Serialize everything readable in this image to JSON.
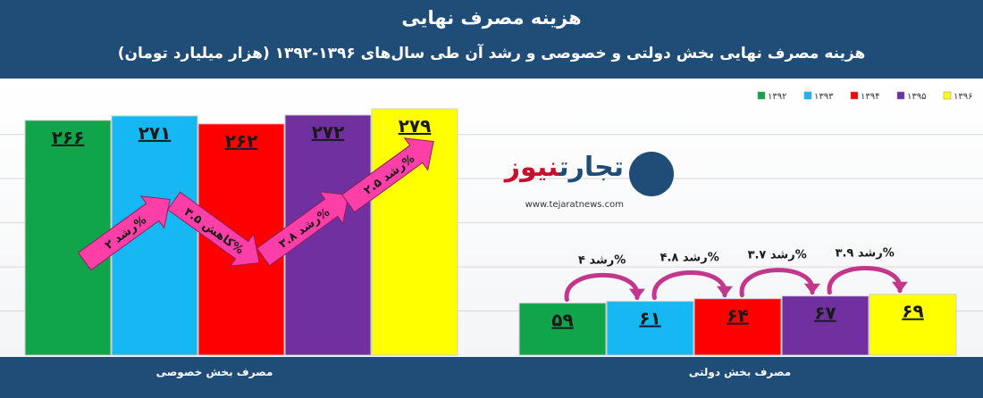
{
  "header": {
    "title": "هزینه مصرف نهایی",
    "subtitle": "هزینه مصرف نهایی بخش دولتی و خصوصی و رشد آن طی سال‌های ۱۳۹۶-۱۳۹۲ (هزار میلیارد تومان)"
  },
  "logo": {
    "brand_main": "تجارت",
    "brand_accent": "نیوز",
    "url": "www.tejaratnews.com"
  },
  "colors": {
    "1392": "#10a54a",
    "1393": "#15b8f2",
    "1394": "#ff0000",
    "1395": "#7030a0",
    "1396": "#ffff00",
    "growth_arrow": "#ff3fa8",
    "growth_curve": "#c2368c",
    "header_bg": "#1f4d78"
  },
  "chart_data": {
    "type": "bar",
    "legend": [
      "۱۳۹۲",
      "۱۳۹۳",
      "۱۳۹۴",
      "۱۳۹۵",
      "۱۳۹۶"
    ],
    "legend_position": "top-right",
    "grid": true,
    "categories": [
      "مصرف بخش خصوصی",
      "مصرف بخش دولتی"
    ],
    "series": [
      {
        "name": "۱۳۹۲",
        "values": [
          266,
          59
        ],
        "labels": [
          "۲۶۶",
          "۵۹"
        ]
      },
      {
        "name": "۱۳۹۳",
        "values": [
          271,
          61
        ],
        "labels": [
          "۲۷۱",
          "۶۱"
        ]
      },
      {
        "name": "۱۳۹۴",
        "values": [
          262,
          64
        ],
        "labels": [
          "۲۶۲",
          "۶۴"
        ]
      },
      {
        "name": "۱۳۹۵",
        "values": [
          272,
          67
        ],
        "labels": [
          "۲۷۲",
          "۶۷"
        ]
      },
      {
        "name": "۱۳۹۶",
        "values": [
          279,
          69
        ],
        "labels": [
          "۲۷۹",
          "۶۹"
        ]
      }
    ],
    "ylim": [
      0,
      300
    ],
    "annotations": {
      "private_growth": [
        "رشد ۲%",
        "کاهش ۳.۵%",
        "رشد ۳.۸%",
        "رشد ۲.۵%"
      ],
      "public_growth": [
        "رشد ۴%",
        "رشد ۴.۸%",
        "رشد ۳.۷%",
        "رشد ۳.۹%"
      ]
    }
  }
}
